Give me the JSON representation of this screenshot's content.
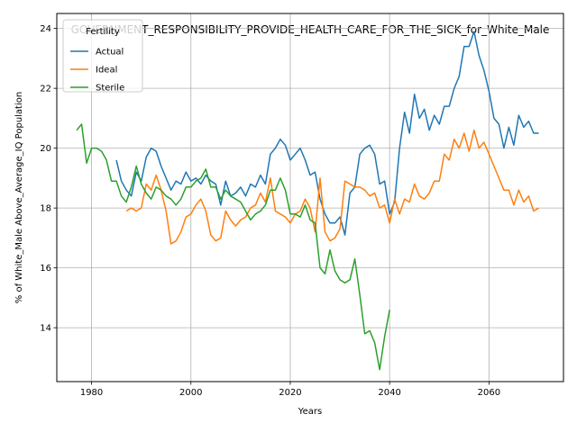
{
  "chart_data": {
    "type": "line",
    "title": "GOVERNMENT_RESPONSIBILITY_PROVIDE_HEALTH_CARE_FOR_THE_SICK_for_White_Male",
    "xlabel": "Years",
    "ylabel": "% of White_Male Above_Average_IQ Population",
    "xlim": [
      1973,
      2075
    ],
    "ylim": [
      12.2,
      24.5
    ],
    "x_ticks": [
      1980,
      2000,
      2020,
      2040,
      2060
    ],
    "y_ticks": [
      14,
      16,
      18,
      20,
      22,
      24
    ],
    "grid": true,
    "legend": {
      "title": "Fertility",
      "placement": "top-left"
    },
    "series": [
      {
        "name": "Actual",
        "color": "#1f77b4",
        "points": [
          [
            1985,
            19.6
          ],
          [
            1986,
            18.9
          ],
          [
            1987,
            18.6
          ],
          [
            1988,
            18.4
          ],
          [
            1989,
            19.2
          ],
          [
            1990,
            18.9
          ],
          [
            1991,
            19.7
          ],
          [
            1992,
            20.0
          ],
          [
            1993,
            19.9
          ],
          [
            1994,
            19.4
          ],
          [
            1995,
            19.0
          ],
          [
            1996,
            18.6
          ],
          [
            1997,
            18.9
          ],
          [
            1998,
            18.8
          ],
          [
            1999,
            19.2
          ],
          [
            2000,
            18.9
          ],
          [
            2001,
            19.0
          ],
          [
            2002,
            18.8
          ],
          [
            2003,
            19.1
          ],
          [
            2004,
            18.9
          ],
          [
            2005,
            18.8
          ],
          [
            2006,
            18.1
          ],
          [
            2007,
            18.9
          ],
          [
            2008,
            18.4
          ],
          [
            2009,
            18.5
          ],
          [
            2010,
            18.7
          ],
          [
            2011,
            18.4
          ],
          [
            2012,
            18.8
          ],
          [
            2013,
            18.7
          ],
          [
            2014,
            19.1
          ],
          [
            2015,
            18.8
          ],
          [
            2016,
            19.8
          ],
          [
            2017,
            20.0
          ],
          [
            2018,
            20.3
          ],
          [
            2019,
            20.1
          ],
          [
            2020,
            19.6
          ],
          [
            2021,
            19.8
          ],
          [
            2022,
            20.0
          ],
          [
            2023,
            19.6
          ],
          [
            2024,
            19.1
          ],
          [
            2025,
            19.2
          ],
          [
            2026,
            18.3
          ],
          [
            2027,
            17.8
          ],
          [
            2028,
            17.5
          ],
          [
            2029,
            17.5
          ],
          [
            2030,
            17.7
          ],
          [
            2031,
            17.1
          ],
          [
            2032,
            18.5
          ],
          [
            2033,
            18.7
          ],
          [
            2034,
            19.8
          ],
          [
            2035,
            20.0
          ],
          [
            2036,
            20.1
          ],
          [
            2037,
            19.8
          ],
          [
            2038,
            18.8
          ],
          [
            2039,
            18.9
          ],
          [
            2040,
            17.8
          ],
          [
            2041,
            18.2
          ],
          [
            2042,
            20.0
          ],
          [
            2043,
            21.2
          ],
          [
            2044,
            20.5
          ],
          [
            2045,
            21.8
          ],
          [
            2046,
            21.0
          ],
          [
            2047,
            21.3
          ],
          [
            2048,
            20.6
          ],
          [
            2049,
            21.1
          ],
          [
            2050,
            20.8
          ],
          [
            2051,
            21.4
          ],
          [
            2052,
            21.4
          ],
          [
            2053,
            22.0
          ],
          [
            2054,
            22.4
          ],
          [
            2055,
            23.4
          ],
          [
            2056,
            23.4
          ],
          [
            2057,
            23.9
          ],
          [
            2058,
            23.1
          ],
          [
            2059,
            22.6
          ],
          [
            2060,
            21.9
          ],
          [
            2061,
            21.0
          ],
          [
            2062,
            20.8
          ],
          [
            2063,
            20.0
          ],
          [
            2064,
            20.7
          ],
          [
            2065,
            20.1
          ],
          [
            2066,
            21.1
          ],
          [
            2067,
            20.7
          ],
          [
            2068,
            20.9
          ],
          [
            2069,
            20.5
          ],
          [
            2070,
            20.5
          ]
        ]
      },
      {
        "name": "Ideal",
        "color": "#ff7f0e",
        "points": [
          [
            1987,
            17.9
          ],
          [
            1988,
            18.0
          ],
          [
            1989,
            17.9
          ],
          [
            1990,
            18.0
          ],
          [
            1991,
            18.8
          ],
          [
            1992,
            18.6
          ],
          [
            1993,
            19.1
          ],
          [
            1994,
            18.6
          ],
          [
            1995,
            17.9
          ],
          [
            1996,
            16.8
          ],
          [
            1997,
            16.9
          ],
          [
            1998,
            17.2
          ],
          [
            1999,
            17.7
          ],
          [
            2000,
            17.8
          ],
          [
            2001,
            18.1
          ],
          [
            2002,
            18.3
          ],
          [
            2003,
            17.9
          ],
          [
            2004,
            17.1
          ],
          [
            2005,
            16.9
          ],
          [
            2006,
            17.0
          ],
          [
            2007,
            17.9
          ],
          [
            2008,
            17.6
          ],
          [
            2009,
            17.4
          ],
          [
            2010,
            17.6
          ],
          [
            2011,
            17.7
          ],
          [
            2012,
            18.0
          ],
          [
            2013,
            18.1
          ],
          [
            2014,
            18.5
          ],
          [
            2015,
            18.2
          ],
          [
            2016,
            19.0
          ],
          [
            2017,
            17.9
          ],
          [
            2018,
            17.8
          ],
          [
            2019,
            17.7
          ],
          [
            2020,
            17.5
          ],
          [
            2021,
            17.8
          ],
          [
            2022,
            17.9
          ],
          [
            2023,
            18.3
          ],
          [
            2024,
            18.0
          ],
          [
            2025,
            17.2
          ],
          [
            2026,
            19.0
          ],
          [
            2027,
            17.2
          ],
          [
            2028,
            16.9
          ],
          [
            2029,
            17.0
          ],
          [
            2030,
            17.3
          ],
          [
            2031,
            18.9
          ],
          [
            2032,
            18.8
          ],
          [
            2033,
            18.7
          ],
          [
            2034,
            18.7
          ],
          [
            2035,
            18.6
          ],
          [
            2036,
            18.4
          ],
          [
            2037,
            18.5
          ],
          [
            2038,
            18.0
          ],
          [
            2039,
            18.1
          ],
          [
            2040,
            17.5
          ],
          [
            2041,
            18.3
          ],
          [
            2042,
            17.8
          ],
          [
            2043,
            18.3
          ],
          [
            2044,
            18.2
          ],
          [
            2045,
            18.8
          ],
          [
            2046,
            18.4
          ],
          [
            2047,
            18.3
          ],
          [
            2048,
            18.5
          ],
          [
            2049,
            18.9
          ],
          [
            2050,
            18.9
          ],
          [
            2051,
            19.8
          ],
          [
            2052,
            19.6
          ],
          [
            2053,
            20.3
          ],
          [
            2054,
            20.0
          ],
          [
            2055,
            20.5
          ],
          [
            2056,
            19.9
          ],
          [
            2057,
            20.6
          ],
          [
            2058,
            20.0
          ],
          [
            2059,
            20.2
          ],
          [
            2060,
            19.8
          ],
          [
            2061,
            19.4
          ],
          [
            2062,
            19.0
          ],
          [
            2063,
            18.6
          ],
          [
            2064,
            18.6
          ],
          [
            2065,
            18.1
          ],
          [
            2066,
            18.6
          ],
          [
            2067,
            18.2
          ],
          [
            2068,
            18.4
          ],
          [
            2069,
            17.9
          ],
          [
            2070,
            18.0
          ]
        ]
      },
      {
        "name": "Sterile",
        "color": "#2ca02c",
        "points": [
          [
            1977,
            20.6
          ],
          [
            1978,
            20.8
          ],
          [
            1979,
            19.5
          ],
          [
            1980,
            20.0
          ],
          [
            1981,
            20.0
          ],
          [
            1982,
            19.9
          ],
          [
            1983,
            19.6
          ],
          [
            1984,
            18.9
          ],
          [
            1985,
            18.9
          ],
          [
            1986,
            18.4
          ],
          [
            1987,
            18.2
          ],
          [
            1988,
            18.7
          ],
          [
            1989,
            19.4
          ],
          [
            1990,
            18.8
          ],
          [
            1991,
            18.5
          ],
          [
            1992,
            18.3
          ],
          [
            1993,
            18.7
          ],
          [
            1994,
            18.6
          ],
          [
            1995,
            18.4
          ],
          [
            1996,
            18.3
          ],
          [
            1997,
            18.1
          ],
          [
            1998,
            18.3
          ],
          [
            1999,
            18.7
          ],
          [
            2000,
            18.7
          ],
          [
            2001,
            18.9
          ],
          [
            2002,
            19.0
          ],
          [
            2003,
            19.3
          ],
          [
            2004,
            18.7
          ],
          [
            2005,
            18.7
          ],
          [
            2006,
            18.3
          ],
          [
            2007,
            18.6
          ],
          [
            2008,
            18.4
          ],
          [
            2009,
            18.3
          ],
          [
            2010,
            18.2
          ],
          [
            2011,
            17.9
          ],
          [
            2012,
            17.6
          ],
          [
            2013,
            17.8
          ],
          [
            2014,
            17.9
          ],
          [
            2015,
            18.1
          ],
          [
            2016,
            18.6
          ],
          [
            2017,
            18.6
          ],
          [
            2018,
            19.0
          ],
          [
            2019,
            18.6
          ],
          [
            2020,
            17.8
          ],
          [
            2021,
            17.8
          ],
          [
            2022,
            17.7
          ],
          [
            2023,
            18.1
          ],
          [
            2024,
            17.6
          ],
          [
            2025,
            17.5
          ],
          [
            2026,
            16.0
          ],
          [
            2027,
            15.8
          ],
          [
            2028,
            16.6
          ],
          [
            2029,
            15.9
          ],
          [
            2030,
            15.6
          ],
          [
            2031,
            15.5
          ],
          [
            2032,
            15.6
          ],
          [
            2033,
            16.3
          ],
          [
            2034,
            15.1
          ],
          [
            2035,
            13.8
          ],
          [
            2036,
            13.9
          ],
          [
            2037,
            13.5
          ],
          [
            2038,
            12.6
          ],
          [
            2039,
            13.7
          ],
          [
            2040,
            14.6
          ]
        ]
      }
    ]
  }
}
